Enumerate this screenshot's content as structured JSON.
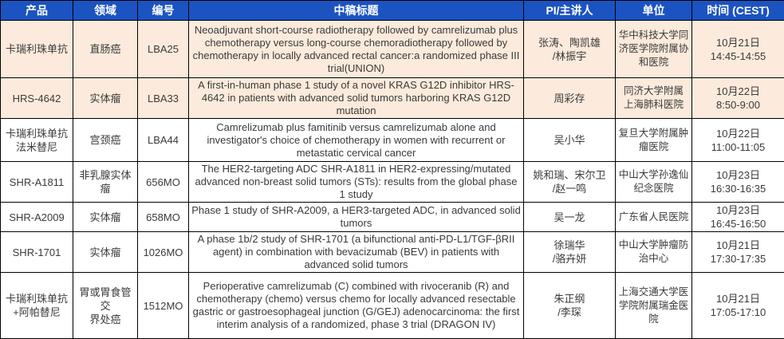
{
  "colors": {
    "header_bg": "#1B53C1",
    "header_text": "#FFFFFF",
    "row_highlight_bg": "#FCEBDC",
    "row_bg": "#FFFFFF",
    "border": "#000000",
    "body_text": "#3A3A3A"
  },
  "table": {
    "columns": [
      {
        "label": "产品"
      },
      {
        "label": "领域"
      },
      {
        "label": "编号"
      },
      {
        "label": "中稿标题"
      },
      {
        "label": "PI/主讲人"
      },
      {
        "label": "单位"
      },
      {
        "label": "时间 (CEST)"
      }
    ],
    "rows": [
      {
        "product": "卡瑞利珠单抗",
        "field": "直肠癌",
        "code": "LBA25",
        "title": "Neoadjuvant short-course radiotherapy followed by camrelizumab plus chemotherapy versus long-course chemoradiotherapy followed by chemotherapy in locally advanced rectal cancer:a randomized phase III trial(UNION)",
        "pi": "张涛、陶凯雄\n/林振宇",
        "institution": "华中科技大学同\n济医学院附属协\n和医院",
        "time": "10月21日\n14:45-14:55"
      },
      {
        "product": "HRS-4642",
        "field": "实体瘤",
        "code": "LBA33",
        "title": "A first-in-human phase 1 study of a novel KRAS G12D inhibitor HRS-4642 in patients with advanced solid tumors harboring KRAS G12D mutation",
        "pi": "周彩存",
        "institution": "同济大学附属\n上海肺科医院",
        "time": "10月22日\n8:50-9:00"
      },
      {
        "product": "卡瑞利珠单抗\n法米替尼",
        "field": "宫颈癌",
        "code": "LBA44",
        "title": "Camrelizumab plus famitinib versus camrelizumab alone and investigator's choice of chemotherapy in women with recurrent or metastatic cervical cancer",
        "pi": "吴小华",
        "institution": "复旦大学附属肿\n瘤医院",
        "time": "10月22日\n11:00-11:05"
      },
      {
        "product": "SHR-A1811",
        "field": "非乳腺实体瘤",
        "code": "656MO",
        "title": "The HER2-targeting ADC SHR-A1811 in HER2-expressing/mutated advanced non-breast solid tumors (STs): results from the global phase 1 study",
        "pi": "姚和瑞、宋尔卫\n/赵一鸣",
        "institution": "中山大学孙逸仙\n纪念医院",
        "time": "10月23日\n16:30-16:35"
      },
      {
        "product": "SHR-A2009",
        "field": "实体瘤",
        "code": "658MO",
        "title": "Phase 1 study of SHR-A2009, a HER3-targeted ADC, in advanced solid tumors",
        "pi": "吴一龙",
        "institution": "广东省人民医院",
        "time": "10月23日\n16:45-16:50"
      },
      {
        "product": "SHR-1701",
        "field": "实体瘤",
        "code": "1026MO",
        "title": "A phase 1b/2 study of SHR-1701 (a bifunctional anti-PD-L1/TGF-βRII agent) in combination with bevacizumab (BEV) in patients with advanced solid tumors",
        "pi": "徐瑞华\n/骆卉妍",
        "institution": "中山大学肿瘤防\n治中心",
        "time": "10月21日\n17:30-17:35"
      },
      {
        "product": "卡瑞利珠单抗\n+阿帕替尼",
        "field": "胃或胃食管交\n界处癌",
        "code": "1512MO",
        "title": "Perioperative camrelizumab (C) combined with rivoceranib (R) and chemotherapy (chemo) versus chemo for locally advanced resectable gastric or gastroesophageal junction (G/GEJ) adenocarcinoma: the first interim analysis of a randomized, phase 3 trial (DRAGON IV)",
        "pi": "朱正纲\n/李琛",
        "institution": "上海交通大学医\n学院附属瑞金医\n院",
        "time": "10月21日\n17:05-17:10"
      }
    ]
  }
}
